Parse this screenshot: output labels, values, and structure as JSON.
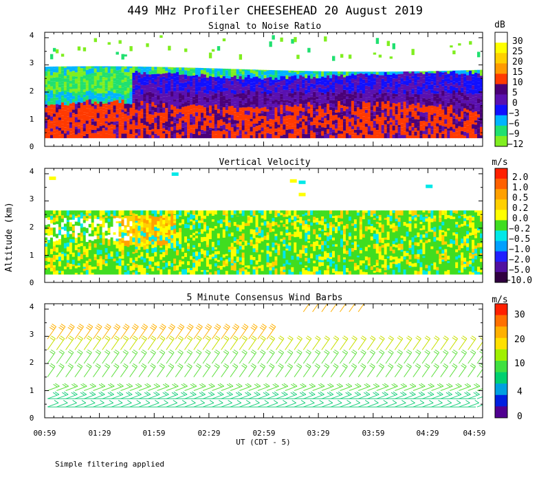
{
  "main_title": "449 MHz Profiler CHEESEHEAD 20 August 2019",
  "y_axis_label": "Altitude (km)",
  "x_axis_label": "UT  (CDT - 5)",
  "footnote": "Simple filtering applied",
  "x_ticks": [
    "00:59",
    "01:29",
    "01:59",
    "02:29",
    "02:59",
    "03:29",
    "03:59",
    "04:29",
    "04:59"
  ],
  "y_ticks": [
    "0",
    "1",
    "2",
    "3",
    "4"
  ],
  "chart_data": [
    {
      "type": "heatmap",
      "title": "Signal to Noise Ratio",
      "xlabel": "UT  (CDT - 5)",
      "ylabel": "Altitude (km)",
      "xlim": [
        "00:59",
        "04:59"
      ],
      "ylim": [
        0,
        4.2
      ],
      "grid": false,
      "colorbar": {
        "units": "dB",
        "labels": [
          "30",
          "25",
          "20",
          "15",
          "10",
          "5",
          "0",
          "−3",
          "−6",
          "−9",
          "−12"
        ],
        "colors": [
          "#ffffff",
          "#ffff00",
          "#ffd000",
          "#ff9a00",
          "#ff3a00",
          "#4a0078",
          "#5a10b0",
          "#1010ff",
          "#00b4ff",
          "#20e070",
          "#80ee20"
        ]
      },
      "layers": [
        {
          "from_km": 0.3,
          "to_km": 1.5,
          "value_db": "10 to 0",
          "description": "red/dark purple"
        },
        {
          "from_km": 1.5,
          "to_km": 2.6,
          "value_db": "5 to -3",
          "description": "purple/blue"
        },
        {
          "from_km": 2.6,
          "to_km": 2.9,
          "value_db": "-6 to -12",
          "description": "cyan/green edge"
        }
      ]
    },
    {
      "type": "heatmap",
      "title": "Vertical Velocity",
      "xlabel": "UT  (CDT - 5)",
      "ylabel": "Altitude (km)",
      "xlim": [
        "00:59",
        "04:59"
      ],
      "ylim": [
        0,
        4.2
      ],
      "grid": false,
      "colorbar": {
        "units": "m/s",
        "labels": [
          "2.0",
          "1.0",
          "0.5",
          "0.2",
          "0.0",
          "−0.2",
          "−0.5",
          "−1.0",
          "−2.0",
          "−5.0",
          "−10.0"
        ],
        "colors": [
          "#ff2000",
          "#ff6000",
          "#ffa000",
          "#ffd000",
          "#ffff00",
          "#40dd20",
          "#00e8e8",
          "#00a0ff",
          "#2020ff",
          "#5010a0",
          "#300040"
        ]
      },
      "layers": [
        {
          "from_km": 0.3,
          "to_km": 2.7,
          "value_ms": "-0.2 to 0.2",
          "description": "mostly green/yellow"
        }
      ]
    },
    {
      "type": "wind_barbs",
      "title": "5 Minute Consensus Wind Barbs",
      "xlabel": "UT  (CDT - 5)",
      "ylabel": "Altitude (km)",
      "xlim": [
        "00:59",
        "04:59"
      ],
      "ylim": [
        0,
        4.2
      ],
      "grid": false,
      "colorbar": {
        "units": "m/s",
        "labels": [
          "30",
          "20",
          "10",
          "4",
          "0"
        ],
        "colors": [
          "#ff2000",
          "#ff7000",
          "#ffb000",
          "#ffe000",
          "#a0f000",
          "#40e040",
          "#00d070",
          "#00a0e0",
          "#0020e0",
          "#500090"
        ]
      },
      "speed_profile": [
        {
          "km": 0.4,
          "speed_ms": 6
        },
        {
          "km": 0.7,
          "speed_ms": 8
        },
        {
          "km": 1.0,
          "speed_ms": 9
        },
        {
          "km": 1.5,
          "speed_ms": 10
        },
        {
          "km": 2.0,
          "speed_ms": 11
        },
        {
          "km": 2.5,
          "speed_ms": 12
        },
        {
          "km": 2.9,
          "speed_ms": 16
        },
        {
          "km": 3.9,
          "speed_ms": 18
        }
      ]
    }
  ]
}
